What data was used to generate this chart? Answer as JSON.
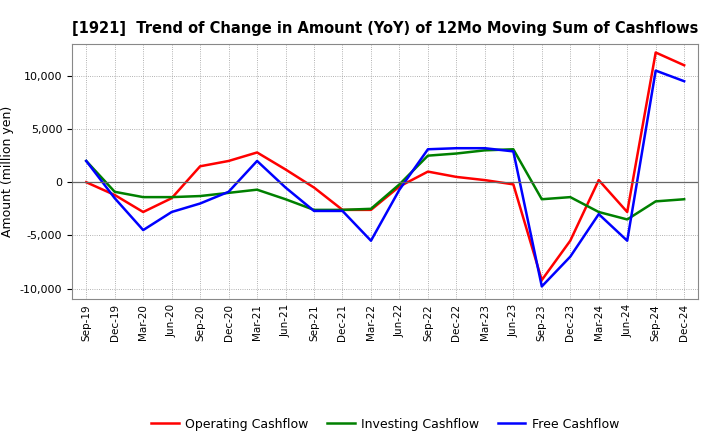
{
  "title": "[1921]  Trend of Change in Amount (YoY) of 12Mo Moving Sum of Cashflows",
  "ylabel": "Amount (million yen)",
  "x_labels": [
    "Sep-19",
    "Dec-19",
    "Mar-20",
    "Jun-20",
    "Sep-20",
    "Dec-20",
    "Mar-21",
    "Jun-21",
    "Sep-21",
    "Dec-21",
    "Mar-22",
    "Jun-22",
    "Sep-22",
    "Dec-22",
    "Mar-23",
    "Jun-23",
    "Sep-23",
    "Dec-23",
    "Mar-24",
    "Jun-24",
    "Sep-24",
    "Dec-24"
  ],
  "operating": [
    0,
    -1200,
    -2800,
    -1500,
    1500,
    2000,
    2800,
    1200,
    -500,
    -2600,
    -2600,
    -400,
    1000,
    500,
    200,
    -200,
    -9200,
    -5500,
    200,
    -2800,
    12200,
    11000
  ],
  "investing": [
    2000,
    -900,
    -1400,
    -1400,
    -1300,
    -1000,
    -700,
    -1600,
    -2600,
    -2600,
    -2500,
    -200,
    2500,
    2700,
    3000,
    3100,
    -1600,
    -1400,
    -2800,
    -3500,
    -1800,
    -1600
  ],
  "free": [
    2000,
    -1500,
    -4500,
    -2800,
    -2000,
    -900,
    2000,
    -500,
    -2700,
    -2700,
    -5500,
    -700,
    3100,
    3200,
    3200,
    2900,
    -9800,
    -7000,
    -3000,
    -5500,
    10500,
    9500
  ],
  "ylim": [
    -11000,
    13000
  ],
  "yticks": [
    -10000,
    -5000,
    0,
    5000,
    10000
  ],
  "operating_color": "#ff0000",
  "investing_color": "#008000",
  "free_color": "#0000ff",
  "line_width": 1.8,
  "bg_color": "#ffffff",
  "grid_color": "#999999"
}
